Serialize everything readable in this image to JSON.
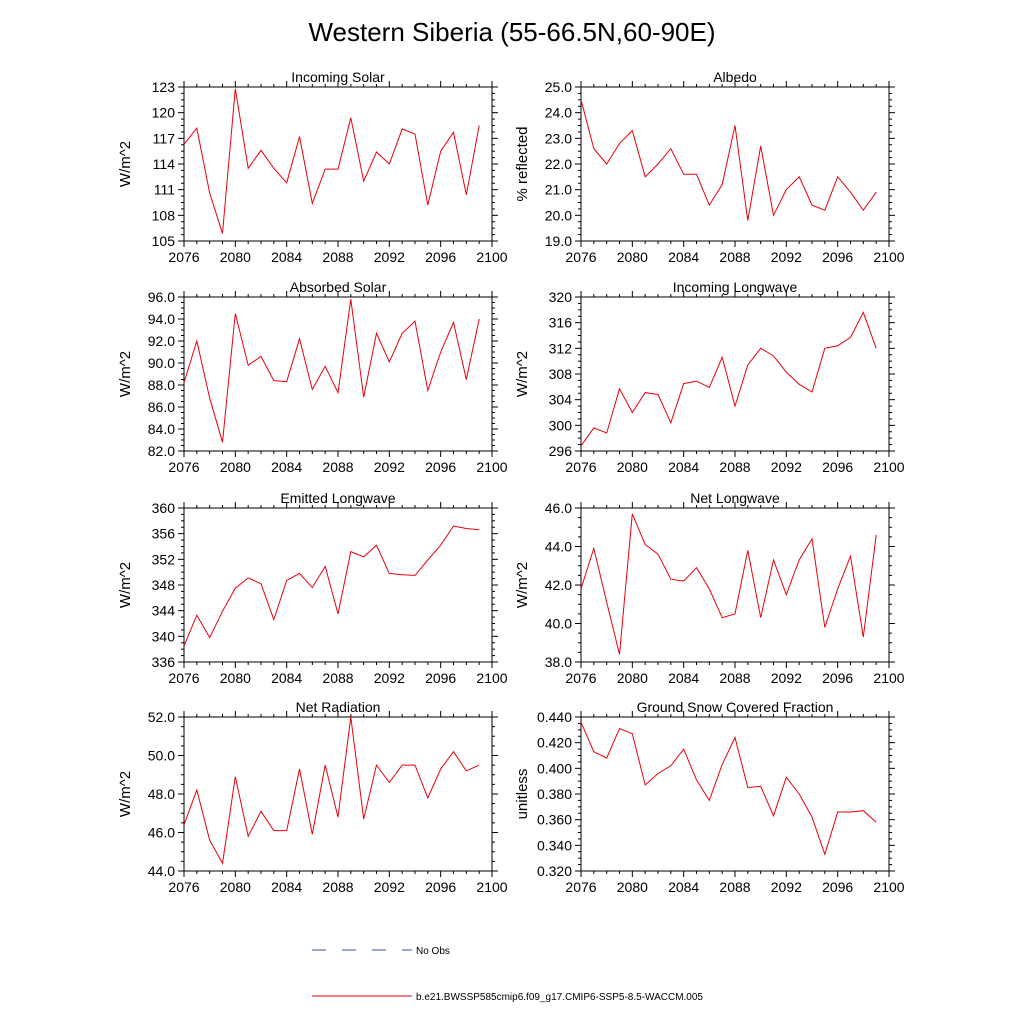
{
  "figure": {
    "title": "Western Siberia (55-66.5N,60-90E)",
    "legend": {
      "entries": [
        {
          "label": "No Obs",
          "color": "#3b4fa8",
          "style": "dashed"
        },
        {
          "label": "b.e21.BWSSP585cmip6.f09_g17.CMIP6-SSP5-8.5-WACCM.005",
          "color": "#e8000b",
          "style": "solid"
        }
      ]
    }
  },
  "chart_data": [
    {
      "type": "line",
      "title": "Incoming Solar",
      "ylabel": "W/m^2",
      "xlim": [
        2076,
        2100
      ],
      "ylim": [
        105,
        123
      ],
      "yticks": [
        "105",
        "108",
        "111",
        "114",
        "117",
        "120",
        "123"
      ],
      "xticks": [
        "2076",
        "2080",
        "2084",
        "2088",
        "2092",
        "2096",
        "2100"
      ],
      "series": [
        {
          "name": "b.e21.BWSSP585cmip6.f09_g17.CMIP6-SSP5-8.5-WACCM.005",
          "color": "#e8000b",
          "x": [
            2076,
            2077,
            2078,
            2079,
            2080,
            2081,
            2082,
            2083,
            2084,
            2085,
            2086,
            2087,
            2088,
            2089,
            2090,
            2091,
            2092,
            2093,
            2094,
            2095,
            2096,
            2097,
            2098,
            2099
          ],
          "values": [
            116.3,
            118.2,
            110.6,
            105.9,
            122.8,
            113.5,
            115.6,
            113.5,
            111.8,
            117.2,
            109.4,
            113.4,
            113.4,
            119.4,
            112.0,
            115.4,
            114.0,
            118.1,
            117.5,
            109.2,
            115.5,
            117.7,
            110.4,
            118.5
          ]
        }
      ]
    },
    {
      "type": "line",
      "title": "Albedo",
      "ylabel": "% reflected",
      "xlim": [
        2076,
        2100
      ],
      "ylim": [
        19.0,
        25.0
      ],
      "yticks": [
        "19.0",
        "20.0",
        "21.0",
        "22.0",
        "23.0",
        "24.0",
        "25.0"
      ],
      "xticks": [
        "2076",
        "2080",
        "2084",
        "2088",
        "2092",
        "2096",
        "2100"
      ],
      "series": [
        {
          "name": "b.e21.BWSSP585cmip6.f09_g17.CMIP6-SSP5-8.5-WACCM.005",
          "color": "#e8000b",
          "x": [
            2076,
            2077,
            2078,
            2079,
            2080,
            2081,
            2082,
            2083,
            2084,
            2085,
            2086,
            2087,
            2088,
            2089,
            2090,
            2091,
            2092,
            2093,
            2094,
            2095,
            2096,
            2097,
            2098,
            2099
          ],
          "values": [
            24.5,
            22.6,
            22.0,
            22.8,
            23.3,
            21.5,
            22.0,
            22.6,
            21.6,
            21.6,
            20.4,
            21.2,
            23.5,
            19.8,
            22.7,
            20.0,
            21.0,
            21.5,
            20.4,
            20.2,
            21.5,
            20.9,
            20.2,
            20.9
          ]
        }
      ]
    },
    {
      "type": "line",
      "title": "Absorbed Solar",
      "ylabel": "W/m^2",
      "xlim": [
        2076,
        2100
      ],
      "ylim": [
        82.0,
        96.0
      ],
      "yticks": [
        "82.0",
        "84.0",
        "86.0",
        "88.0",
        "90.0",
        "92.0",
        "94.0",
        "96.0"
      ],
      "xticks": [
        "2076",
        "2080",
        "2084",
        "2088",
        "2092",
        "2096",
        "2100"
      ],
      "series": [
        {
          "name": "b.e21.BWSSP585cmip6.f09_g17.CMIP6-SSP5-8.5-WACCM.005",
          "color": "#e8000b",
          "x": [
            2076,
            2077,
            2078,
            2079,
            2080,
            2081,
            2082,
            2083,
            2084,
            2085,
            2086,
            2087,
            2088,
            2089,
            2090,
            2091,
            2092,
            2093,
            2094,
            2095,
            2096,
            2097,
            2098,
            2099
          ],
          "values": [
            88.2,
            92.0,
            86.8,
            82.8,
            94.5,
            89.8,
            90.6,
            88.4,
            88.3,
            92.2,
            87.6,
            89.7,
            87.3,
            95.8,
            86.9,
            92.7,
            90.1,
            92.7,
            93.8,
            87.5,
            91.0,
            93.7,
            88.5,
            94.0
          ]
        }
      ]
    },
    {
      "type": "line",
      "title": "Incoming Longwave",
      "ylabel": "W/m^2",
      "xlim": [
        2076,
        2100
      ],
      "ylim": [
        296,
        320
      ],
      "yticks": [
        "296",
        "300",
        "304",
        "308",
        "312",
        "316",
        "320"
      ],
      "xticks": [
        "2076",
        "2080",
        "2084",
        "2088",
        "2092",
        "2096",
        "2100"
      ],
      "series": [
        {
          "name": "b.e21.BWSSP585cmip6.f09_g17.CMIP6-SSP5-8.5-WACCM.005",
          "color": "#e8000b",
          "x": [
            2076,
            2077,
            2078,
            2079,
            2080,
            2081,
            2082,
            2083,
            2084,
            2085,
            2086,
            2087,
            2088,
            2089,
            2090,
            2091,
            2092,
            2093,
            2094,
            2095,
            2096,
            2097,
            2098,
            2099
          ],
          "values": [
            296.8,
            299.6,
            298.8,
            305.7,
            302.0,
            305.1,
            304.8,
            300.4,
            306.5,
            306.9,
            305.9,
            310.6,
            303.0,
            309.4,
            312.0,
            310.8,
            308.3,
            306.4,
            305.2,
            312.0,
            312.4,
            313.7,
            317.6,
            312.0
          ]
        }
      ]
    },
    {
      "type": "line",
      "title": "Emitted Longwave",
      "ylabel": "W/m^2",
      "xlim": [
        2076,
        2100
      ],
      "ylim": [
        336,
        360
      ],
      "yticks": [
        "336",
        "340",
        "344",
        "348",
        "352",
        "356",
        "360"
      ],
      "xticks": [
        "2076",
        "2080",
        "2084",
        "2088",
        "2092",
        "2096",
        "2100"
      ],
      "series": [
        {
          "name": "b.e21.BWSSP585cmip6.f09_g17.CMIP6-SSP5-8.5-WACCM.005",
          "color": "#e8000b",
          "x": [
            2076,
            2077,
            2078,
            2079,
            2080,
            2081,
            2082,
            2083,
            2084,
            2085,
            2086,
            2087,
            2088,
            2089,
            2090,
            2091,
            2092,
            2093,
            2094,
            2095,
            2096,
            2097,
            2098,
            2099
          ],
          "values": [
            338.5,
            343.3,
            339.8,
            343.9,
            347.5,
            349.1,
            348.2,
            342.6,
            348.7,
            349.8,
            347.6,
            350.9,
            343.5,
            353.2,
            352.4,
            354.2,
            349.8,
            349.6,
            349.5,
            351.9,
            354.2,
            357.2,
            356.8,
            356.6
          ]
        }
      ]
    },
    {
      "type": "line",
      "title": "Net Longwave",
      "ylabel": "W/m^2",
      "xlim": [
        2076,
        2100
      ],
      "ylim": [
        38.0,
        46.0
      ],
      "yticks": [
        "38.0",
        "40.0",
        "42.0",
        "44.0",
        "46.0"
      ],
      "xticks": [
        "2076",
        "2080",
        "2084",
        "2088",
        "2092",
        "2096",
        "2100"
      ],
      "series": [
        {
          "name": "b.e21.BWSSP585cmip6.f09_g17.CMIP6-SSP5-8.5-WACCM.005",
          "color": "#e8000b",
          "x": [
            2076,
            2077,
            2078,
            2079,
            2080,
            2081,
            2082,
            2083,
            2084,
            2085,
            2086,
            2087,
            2088,
            2089,
            2090,
            2091,
            2092,
            2093,
            2094,
            2095,
            2096,
            2097,
            2098,
            2099
          ],
          "values": [
            41.8,
            43.9,
            41.1,
            38.4,
            45.7,
            44.1,
            43.6,
            42.3,
            42.2,
            42.9,
            41.8,
            40.3,
            40.5,
            43.8,
            40.3,
            43.3,
            41.5,
            43.3,
            44.4,
            39.8,
            41.8,
            43.5,
            39.3,
            44.6
          ]
        }
      ]
    },
    {
      "type": "line",
      "title": "Net Radiation",
      "ylabel": "W/m^2",
      "xlim": [
        2076,
        2100
      ],
      "ylim": [
        44.0,
        52.0
      ],
      "yticks": [
        "44.0",
        "46.0",
        "48.0",
        "50.0",
        "52.0"
      ],
      "xticks": [
        "2076",
        "2080",
        "2084",
        "2088",
        "2092",
        "2096",
        "2100"
      ],
      "series": [
        {
          "name": "b.e21.BWSSP585cmip6.f09_g17.CMIP6-SSP5-8.5-WACCM.005",
          "color": "#e8000b",
          "x": [
            2076,
            2077,
            2078,
            2079,
            2080,
            2081,
            2082,
            2083,
            2084,
            2085,
            2086,
            2087,
            2088,
            2089,
            2090,
            2091,
            2092,
            2093,
            2094,
            2095,
            2096,
            2097,
            2098,
            2099
          ],
          "values": [
            46.4,
            48.2,
            45.6,
            44.4,
            48.9,
            45.8,
            47.1,
            46.1,
            46.1,
            49.3,
            45.9,
            49.5,
            46.8,
            52.0,
            46.7,
            49.5,
            48.6,
            49.5,
            49.5,
            47.8,
            49.3,
            50.2,
            49.2,
            49.5
          ]
        }
      ]
    },
    {
      "type": "line",
      "title": "Ground Snow Covered Fraction",
      "ylabel": "unitless",
      "xlim": [
        2076,
        2100
      ],
      "ylim": [
        0.32,
        0.44
      ],
      "yticks": [
        "0.320",
        "0.340",
        "0.360",
        "0.380",
        "0.400",
        "0.420",
        "0.440"
      ],
      "xticks": [
        "2076",
        "2080",
        "2084",
        "2088",
        "2092",
        "2096",
        "2100"
      ],
      "series": [
        {
          "name": "b.e21.BWSSP585cmip6.f09_g17.CMIP6-SSP5-8.5-WACCM.005",
          "color": "#e8000b",
          "x": [
            2076,
            2077,
            2078,
            2079,
            2080,
            2081,
            2082,
            2083,
            2084,
            2085,
            2086,
            2087,
            2088,
            2089,
            2090,
            2091,
            2092,
            2093,
            2094,
            2095,
            2096,
            2097,
            2098,
            2099
          ],
          "values": [
            0.436,
            0.413,
            0.408,
            0.431,
            0.427,
            0.387,
            0.396,
            0.402,
            0.415,
            0.391,
            0.375,
            0.403,
            0.424,
            0.385,
            0.386,
            0.363,
            0.393,
            0.38,
            0.362,
            0.333,
            0.366,
            0.366,
            0.367,
            0.358
          ]
        }
      ]
    }
  ]
}
